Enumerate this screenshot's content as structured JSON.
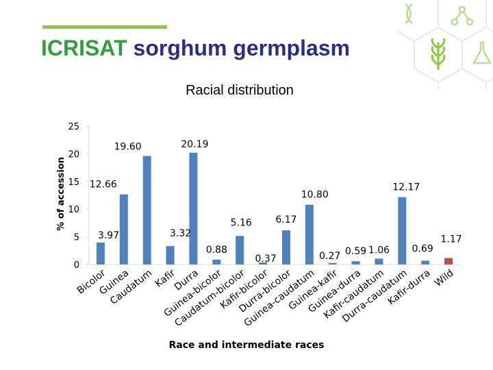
{
  "header": {
    "brand": "ICRISAT",
    "title_rest": "sorghum germplasm"
  },
  "icons": [
    "dna-icon",
    "molecule-icon",
    "wheat-icon",
    "flask-icon"
  ],
  "chart_data": {
    "type": "bar",
    "title": "Racial distribution",
    "xlabel": "Race and intermediate races",
    "ylabel": "% of accession",
    "ylim": [
      0,
      25
    ],
    "yticks": [
      0,
      5,
      10,
      15,
      20,
      25
    ],
    "categories": [
      "Bicolor",
      "Guinea",
      "Caudatum",
      "Kafir",
      "Durra",
      "Guinea-bicolor",
      "Caudatum-bicolor",
      "Kafir-bicolor",
      "Durra-bicolor",
      "Guinea-caudatum",
      "Guinea-kafir",
      "Guinea-durra",
      "Kafir-caudatum",
      "Durra-caudatum",
      "Kafir-durra",
      "Wild"
    ],
    "values": [
      3.97,
      12.66,
      19.6,
      3.32,
      20.19,
      0.88,
      5.16,
      0.37,
      6.17,
      10.8,
      0.27,
      0.59,
      1.06,
      12.17,
      0.69,
      1.17
    ],
    "value_labels": [
      "3.97",
      "12.66",
      "19.60",
      "3.32",
      "20.19",
      "0.88",
      "5.16",
      "0.37",
      "6.17",
      "10.80",
      "0.27",
      "0.59",
      "1.06",
      "12.17",
      "0.69",
      "1.17"
    ],
    "bar_colors": [
      "#4f81bd",
      "#4f81bd",
      "#4f81bd",
      "#4f81bd",
      "#4f81bd",
      "#4f81bd",
      "#4f81bd",
      "#4f81bd",
      "#4f81bd",
      "#4f81bd",
      "#4f81bd",
      "#4f81bd",
      "#4f81bd",
      "#4f81bd",
      "#4f81bd",
      "#c0504d"
    ],
    "grid": false,
    "legend": "none"
  }
}
